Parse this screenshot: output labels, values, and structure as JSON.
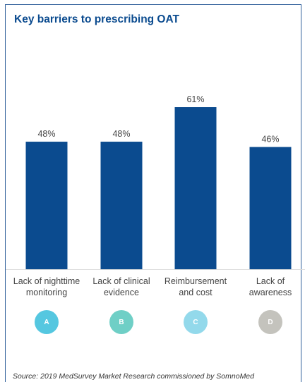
{
  "title": "Key barriers to prescribing OAT",
  "source": "Source: 2019 MedSurvey Market Research commissioned by SomnoMed",
  "colors": {
    "bar": "#0b4b8f",
    "title": "#0b4b8f",
    "border": "#2f5f9a"
  },
  "chart_data": {
    "type": "bar",
    "title": "Key barriers to prescribing OAT",
    "categories": [
      "Lack of nighttime monitoring",
      "Lack of clinical evidence",
      "Reimbursement and cost",
      "Lack of awareness"
    ],
    "values": [
      48,
      48,
      61,
      46
    ],
    "data_labels": [
      "48%",
      "48%",
      "61%",
      "46%"
    ],
    "unit": "%",
    "xlabel": "",
    "ylabel": "",
    "ylim": [
      0,
      100
    ],
    "grid": false,
    "legend": false
  },
  "axis_labels": [
    "Lack of nighttime\nmonitoring",
    "Lack of clinical\nevidence",
    "Reimbursement\nand cost",
    "Lack of\nawareness"
  ],
  "badges": [
    {
      "letter": "A",
      "color": "#55c7e0"
    },
    {
      "letter": "B",
      "color": "#6fcfc6"
    },
    {
      "letter": "C",
      "color": "#93d9eb"
    },
    {
      "letter": "D",
      "color": "#c4c3bd"
    }
  ]
}
